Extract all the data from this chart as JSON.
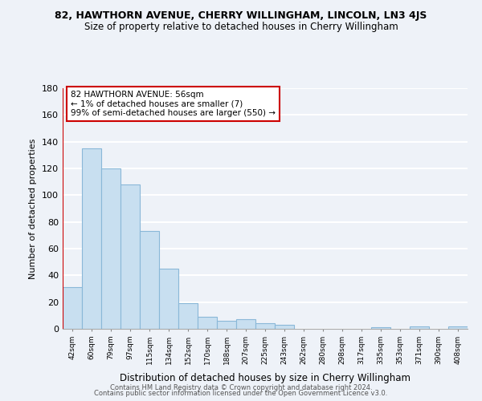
{
  "title": "82, HAWTHORN AVENUE, CHERRY WILLINGHAM, LINCOLN, LN3 4JS",
  "subtitle": "Size of property relative to detached houses in Cherry Willingham",
  "xlabel": "Distribution of detached houses by size in Cherry Willingham",
  "ylabel": "Number of detached properties",
  "bar_labels": [
    "42sqm",
    "60sqm",
    "79sqm",
    "97sqm",
    "115sqm",
    "134sqm",
    "152sqm",
    "170sqm",
    "188sqm",
    "207sqm",
    "225sqm",
    "243sqm",
    "262sqm",
    "280sqm",
    "298sqm",
    "317sqm",
    "335sqm",
    "353sqm",
    "371sqm",
    "390sqm",
    "408sqm"
  ],
  "bar_values": [
    31,
    135,
    120,
    108,
    73,
    45,
    19,
    9,
    6,
    7,
    4,
    3,
    0,
    0,
    0,
    0,
    1,
    0,
    2,
    0,
    2
  ],
  "bar_color": "#c8dff0",
  "bar_edge_color": "#8ab8d8",
  "highlight_color": "#cc0000",
  "annotation_title": "82 HAWTHORN AVENUE: 56sqm",
  "annotation_line1": "← 1% of detached houses are smaller (7)",
  "annotation_line2": "99% of semi-detached houses are larger (550) →",
  "annotation_box_color": "#ffffff",
  "annotation_box_edge": "#cc0000",
  "ylim": [
    0,
    180
  ],
  "yticks": [
    0,
    20,
    40,
    60,
    80,
    100,
    120,
    140,
    160,
    180
  ],
  "footer1": "Contains HM Land Registry data © Crown copyright and database right 2024.",
  "footer2": "Contains public sector information licensed under the Open Government Licence v3.0.",
  "bg_color": "#eef2f8",
  "grid_color": "#ffffff"
}
